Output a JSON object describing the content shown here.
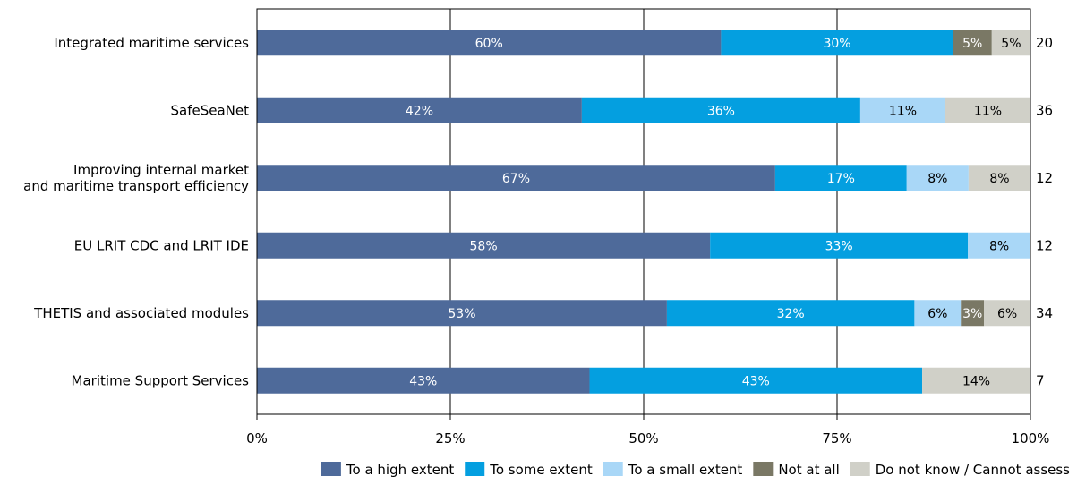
{
  "chart_data": {
    "type": "bar",
    "orientation": "horizontal",
    "stacked": true,
    "percent_stacked": true,
    "categories": [
      [
        "Integrated maritime services"
      ],
      [
        "SafeSeaNet"
      ],
      [
        "Improving internal market",
        "and maritime transport efficiency"
      ],
      [
        "EU LRIT CDC and LRIT IDE"
      ],
      [
        "THETIS and associated modules"
      ],
      [
        "Maritime Support Services"
      ]
    ],
    "counts": [
      "20",
      "36",
      "12",
      "12",
      "34",
      "7"
    ],
    "series": [
      {
        "name": "To a high extent",
        "color": "#4e6a9a",
        "label_color": "#ffffff",
        "values": [
          60,
          42,
          67,
          58,
          53,
          43
        ],
        "labels": [
          "60%",
          "42%",
          "67%",
          "58%",
          "53%",
          "43%"
        ]
      },
      {
        "name": "To some extent",
        "color": "#049fe0",
        "label_color": "#ffffff",
        "values": [
          30,
          36,
          17,
          33,
          32,
          43
        ],
        "labels": [
          "30%",
          "36%",
          "17%",
          "33%",
          "32%",
          "43%"
        ]
      },
      {
        "name": "To a small extent",
        "color": "#a9d7f7",
        "label_color": "#000000",
        "values": [
          0,
          11,
          8,
          8,
          6,
          0
        ],
        "labels": [
          "",
          "11%",
          "8%",
          "8%",
          "6%",
          ""
        ]
      },
      {
        "name": "Not at all",
        "color": "#7a7865",
        "label_color": "#ffffff",
        "values": [
          5,
          0,
          0,
          0,
          3,
          0
        ],
        "labels": [
          "5%",
          "",
          "",
          "",
          "3%",
          ""
        ]
      },
      {
        "name": "Do not know / Cannot assess",
        "color": "#d0d0c8",
        "label_color": "#000000",
        "values": [
          5,
          11,
          8,
          0,
          6,
          14
        ],
        "labels": [
          "5%",
          "11%",
          "8%",
          "",
          "6%",
          "14%"
        ]
      }
    ],
    "xlim": [
      0,
      100
    ],
    "xticks": [
      0,
      25,
      50,
      75,
      100
    ],
    "xtick_labels": [
      "0%",
      "25%",
      "50%",
      "75%",
      "100%"
    ],
    "grid": "vertical",
    "legend": "bottom-right"
  }
}
